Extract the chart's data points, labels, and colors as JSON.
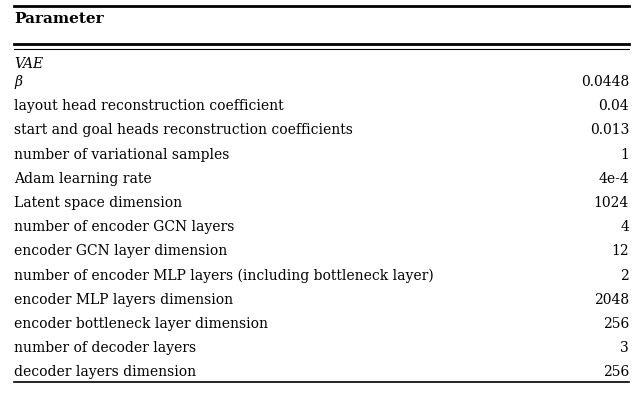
{
  "header": "Parameter",
  "section": "VAE",
  "rows": [
    [
      "β",
      "0.0448"
    ],
    [
      "layout head reconstruction coefficient",
      "0.04"
    ],
    [
      "start and goal heads reconstruction coefficients",
      "0.013"
    ],
    [
      "number of variational samples",
      "1"
    ],
    [
      "Adam learning rate",
      "4e-4"
    ],
    [
      "Latent space dimension",
      "1024"
    ],
    [
      "number of encoder GCN layers",
      "4"
    ],
    [
      "encoder GCN layer dimension",
      "12"
    ],
    [
      "number of encoder MLP layers (including bottleneck layer)",
      "2"
    ],
    [
      "encoder MLP layers dimension",
      "2048"
    ],
    [
      "encoder bottleneck layer dimension",
      "256"
    ],
    [
      "number of decoder layers",
      "3"
    ],
    [
      "decoder layers dimension",
      "256"
    ]
  ],
  "bg_color": "#ffffff",
  "text_color": "#000000",
  "header_fontsize": 11,
  "body_fontsize": 10,
  "fig_width": 6.4,
  "fig_height": 4.2
}
